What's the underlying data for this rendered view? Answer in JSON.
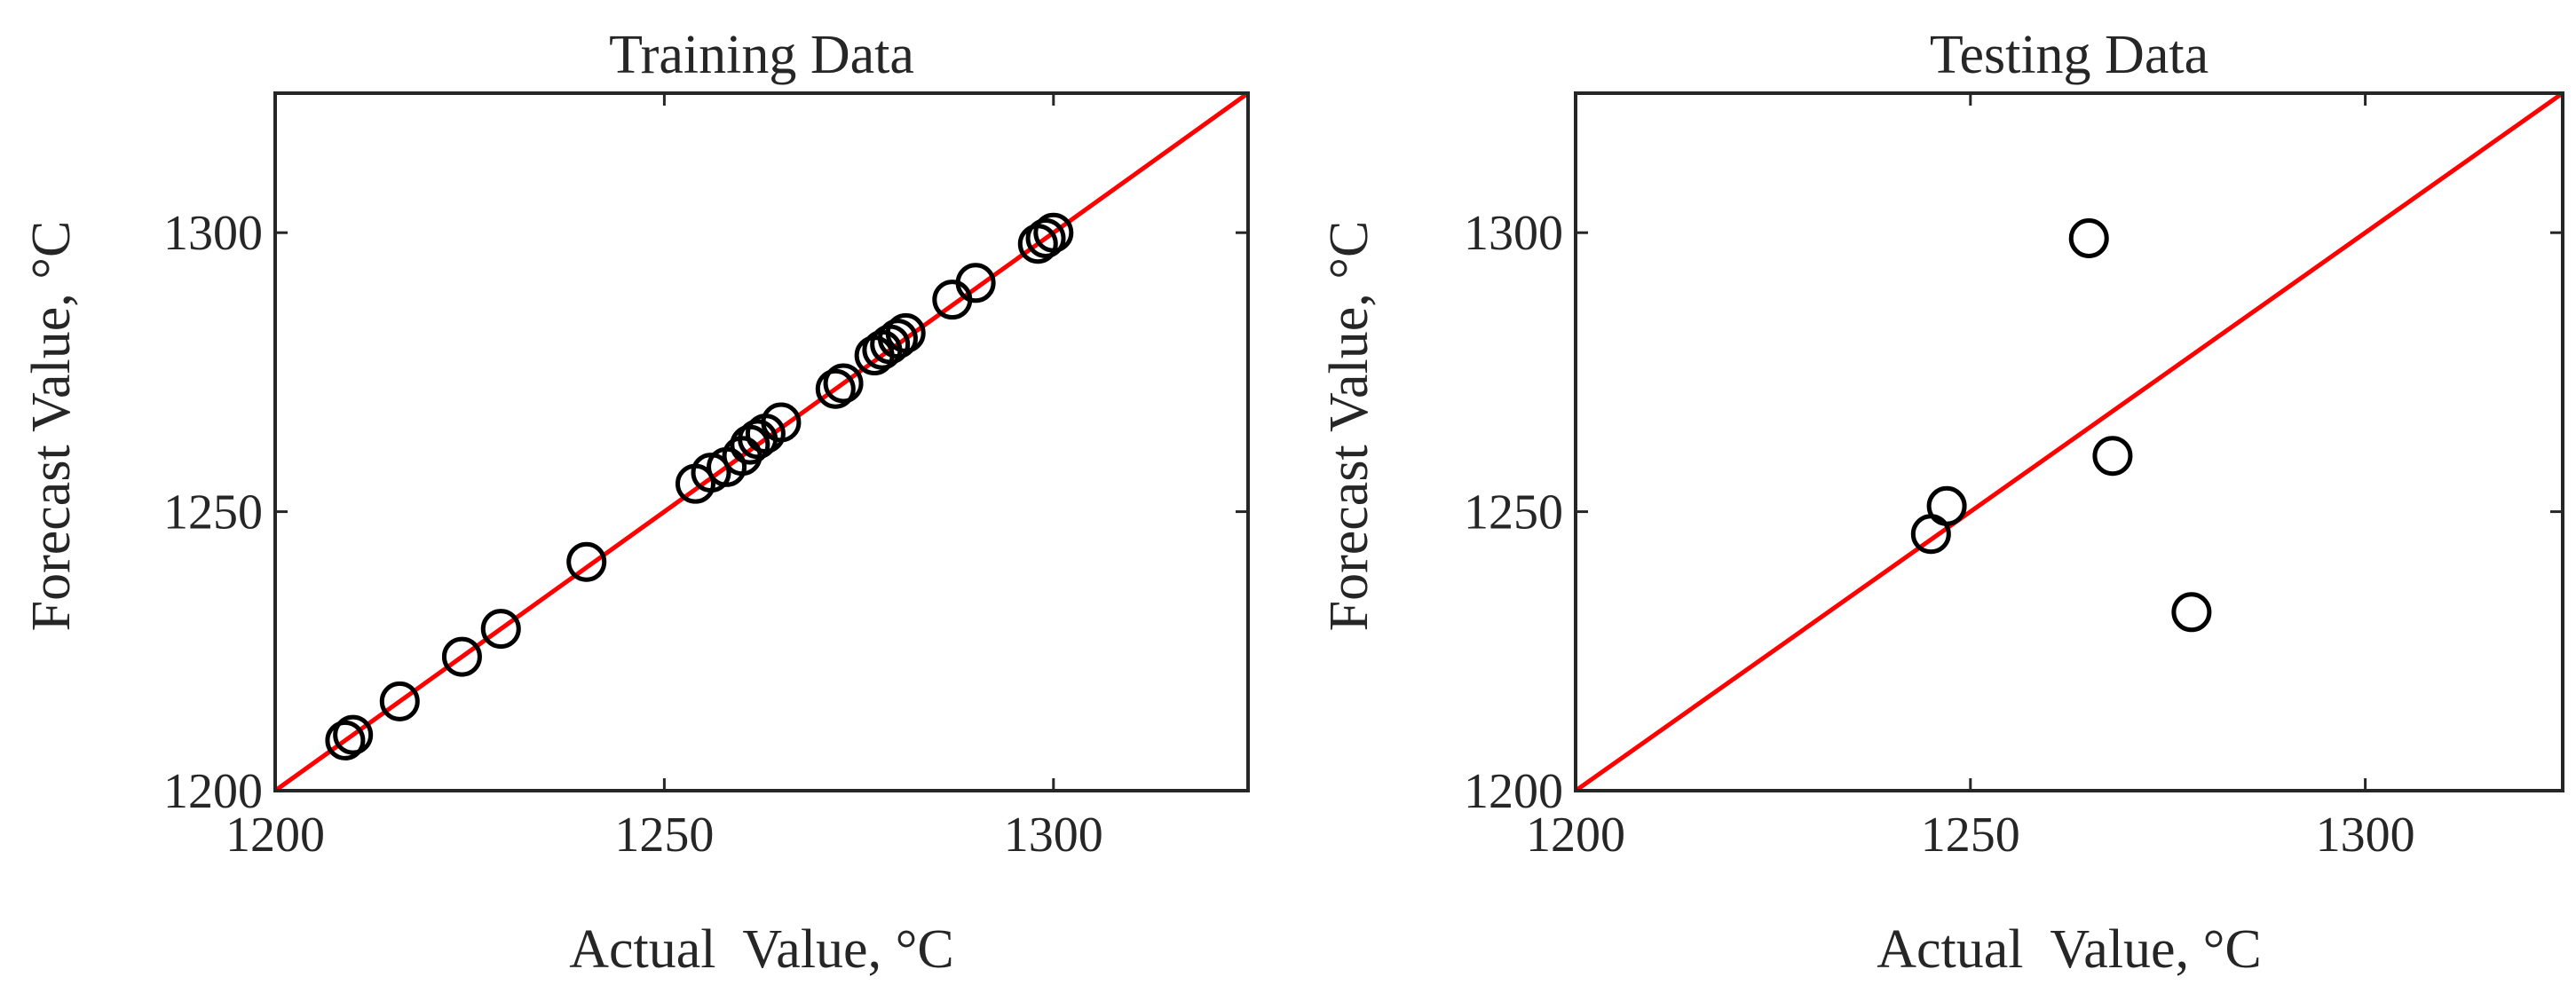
{
  "chart_data": [
    {
      "type": "scatter",
      "title": "Training Data",
      "xlabel": "Actual  Value, °C",
      "ylabel": "Forecast Value, °C",
      "xlim": [
        1200,
        1325
      ],
      "ylim": [
        1200,
        1325
      ],
      "xticks": [
        "1200",
        "1250",
        "1300"
      ],
      "yticks": [
        "1200",
        "1250",
        "1300"
      ],
      "grid": false,
      "marker": "open-circle",
      "marker_color": "#000000",
      "reference_line": {
        "x": [
          1200,
          1325
        ],
        "y": [
          1200,
          1325
        ],
        "color": "#ff0000"
      },
      "points": [
        {
          "x": 1209,
          "y": 1209
        },
        {
          "x": 1210,
          "y": 1210
        },
        {
          "x": 1216,
          "y": 1216
        },
        {
          "x": 1224,
          "y": 1224
        },
        {
          "x": 1229,
          "y": 1229
        },
        {
          "x": 1240,
          "y": 1241
        },
        {
          "x": 1254,
          "y": 1255
        },
        {
          "x": 1256,
          "y": 1257
        },
        {
          "x": 1258,
          "y": 1258
        },
        {
          "x": 1260,
          "y": 1260
        },
        {
          "x": 1261,
          "y": 1262
        },
        {
          "x": 1262,
          "y": 1263
        },
        {
          "x": 1263,
          "y": 1264
        },
        {
          "x": 1265,
          "y": 1266
        },
        {
          "x": 1272,
          "y": 1272
        },
        {
          "x": 1273,
          "y": 1273
        },
        {
          "x": 1277,
          "y": 1278
        },
        {
          "x": 1278,
          "y": 1279
        },
        {
          "x": 1279,
          "y": 1280
        },
        {
          "x": 1280,
          "y": 1281
        },
        {
          "x": 1281,
          "y": 1282
        },
        {
          "x": 1287,
          "y": 1288
        },
        {
          "x": 1290,
          "y": 1291
        },
        {
          "x": 1298,
          "y": 1298
        },
        {
          "x": 1299,
          "y": 1299
        },
        {
          "x": 1300,
          "y": 1300
        }
      ]
    },
    {
      "type": "scatter",
      "title": "Testing Data",
      "xlabel": "Actual  Value, °C",
      "ylabel": "Forecast Value, °C",
      "xlim": [
        1200,
        1325
      ],
      "ylim": [
        1200,
        1325
      ],
      "xticks": [
        "1200",
        "1250",
        "1300"
      ],
      "yticks": [
        "1200",
        "1250",
        "1300"
      ],
      "grid": false,
      "marker": "open-circle",
      "marker_color": "#000000",
      "reference_line": {
        "x": [
          1200,
          1325
        ],
        "y": [
          1200,
          1325
        ],
        "color": "#ff0000"
      },
      "points": [
        {
          "x": 1245,
          "y": 1246
        },
        {
          "x": 1247,
          "y": 1251
        },
        {
          "x": 1265,
          "y": 1299
        },
        {
          "x": 1268,
          "y": 1260
        },
        {
          "x": 1278,
          "y": 1232
        }
      ]
    }
  ]
}
